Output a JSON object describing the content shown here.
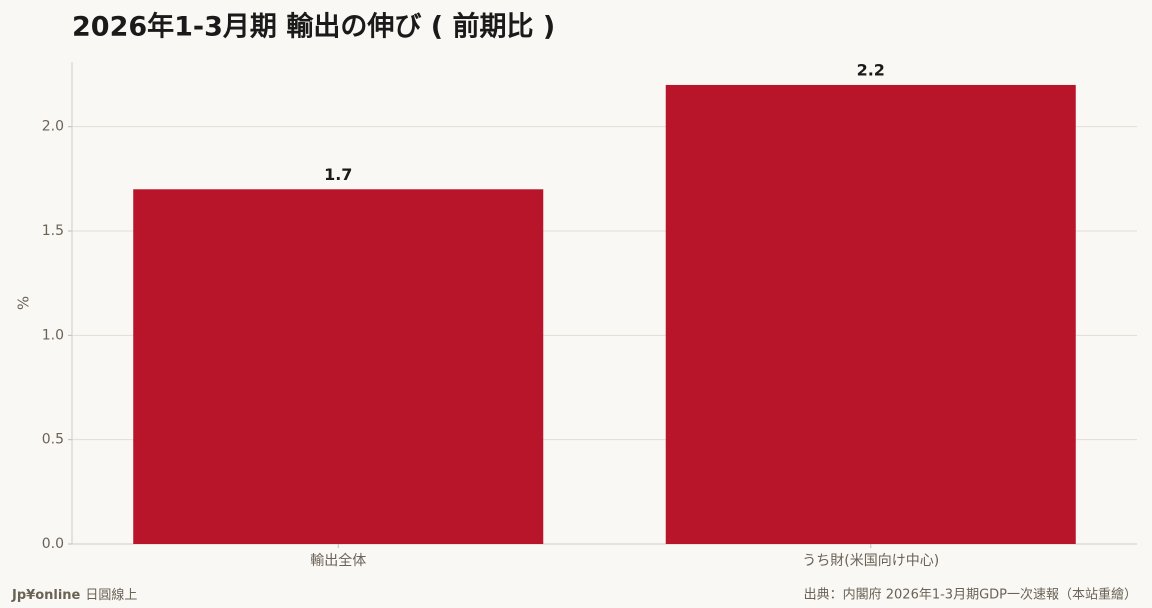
{
  "chart_data": {
    "type": "bar",
    "title": "2026年1-3月期 輸出の伸び ( 前期比 )",
    "y_label": "%",
    "categories": [
      "輸出全体",
      "うち財(米国向け中心)"
    ],
    "values": [
      1.7,
      2.2
    ],
    "color": "#b8152b",
    "ylim": [
      0,
      2.31
    ],
    "yticks": [
      {
        "value": 0,
        "label": "0.0"
      },
      0.5,
      {
        "value": 1,
        "label": "1.0"
      },
      1.5,
      {
        "value": 2,
        "label": "2.0"
      }
    ],
    "grid": true
  },
  "footer": {
    "brand": "Jp¥online",
    "brand_sub": "日圓線上",
    "source": "出典：内閣府 2026年1-3月期GDP一次速報（本站重繪）"
  }
}
